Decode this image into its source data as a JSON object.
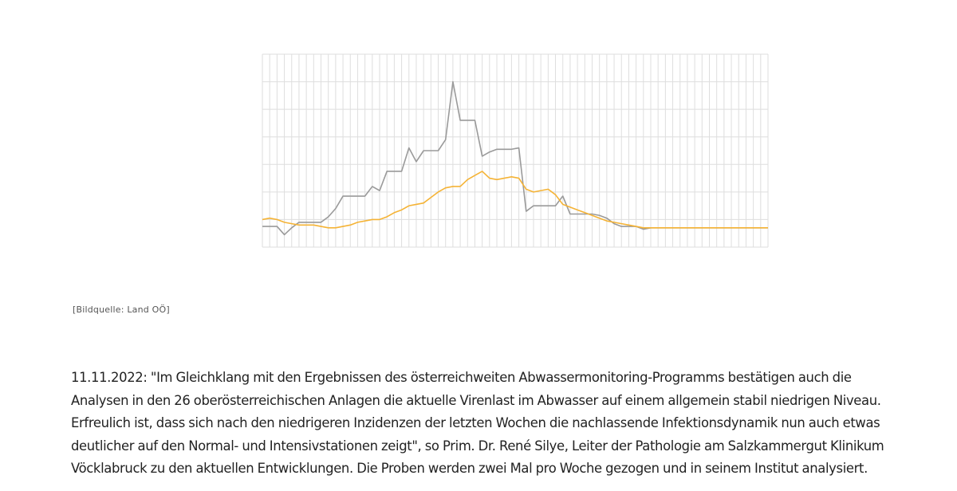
{
  "chart_data": {
    "type": "line",
    "x": [
      1,
      2,
      3,
      4,
      5,
      6,
      7,
      8,
      9,
      10,
      11,
      12,
      13,
      14,
      15,
      16,
      17,
      18,
      19,
      20,
      21,
      22,
      23,
      24,
      25,
      26,
      27,
      28,
      29,
      30,
      31,
      32,
      33,
      34,
      35,
      36,
      37,
      38,
      39,
      40,
      41,
      42,
      43,
      44,
      45,
      46,
      47,
      48,
      49,
      50,
      51,
      52,
      53,
      54,
      55,
      56,
      57,
      58,
      59,
      60,
      61,
      62,
      63,
      64,
      65,
      66,
      67,
      68,
      69,
      70
    ],
    "xlim": [
      1,
      70
    ],
    "ylim": [
      0,
      7
    ],
    "grid": true,
    "series": [
      {
        "color": "#9a9a9a",
        "values": [
          0.75,
          0.75,
          0.75,
          0.45,
          0.7,
          0.9,
          0.9,
          0.9,
          0.9,
          1.1,
          1.4,
          1.85,
          1.85,
          1.85,
          1.85,
          2.2,
          2.05,
          2.75,
          2.75,
          2.75,
          3.6,
          3.1,
          3.5,
          3.5,
          3.5,
          3.9,
          6.0,
          4.6,
          4.6,
          4.6,
          3.3,
          3.45,
          3.55,
          3.55,
          3.55,
          3.6,
          1.3,
          1.5,
          1.5,
          1.5,
          1.5,
          1.85,
          1.2,
          1.2,
          1.2,
          1.2,
          1.15,
          1.05,
          0.85,
          0.75,
          0.75,
          0.75,
          0.65,
          0.7,
          0.7,
          0.7,
          0.7,
          0.7,
          0.7,
          0.7,
          0.7,
          0.7,
          0.7,
          0.7,
          0.7,
          0.7,
          0.7,
          0.7,
          0.7,
          0.7
        ]
      },
      {
        "color": "#f5b335",
        "values": [
          1.0,
          1.05,
          1.0,
          0.9,
          0.85,
          0.8,
          0.8,
          0.8,
          0.75,
          0.7,
          0.7,
          0.75,
          0.8,
          0.9,
          0.95,
          1.0,
          1.0,
          1.1,
          1.25,
          1.35,
          1.5,
          1.55,
          1.6,
          1.8,
          2.0,
          2.15,
          2.2,
          2.2,
          2.45,
          2.6,
          2.75,
          2.5,
          2.45,
          2.5,
          2.55,
          2.5,
          2.1,
          2.0,
          2.05,
          2.1,
          1.9,
          1.55,
          1.45,
          1.35,
          1.25,
          1.15,
          1.05,
          0.95,
          0.9,
          0.85,
          0.8,
          0.75,
          0.7,
          0.7,
          0.7,
          0.7,
          0.7,
          0.7,
          0.7,
          0.7,
          0.7,
          0.7,
          0.7,
          0.7,
          0.7,
          0.7,
          0.7,
          0.7,
          0.7,
          0.7
        ]
      }
    ]
  },
  "caption": "[Bildquelle: Land OÖ]",
  "article": {
    "lines": [
      "11.11.2022: \"Im Gleichklang mit den Ergebnissen des österreichweiten Abwassermonitoring-Programms bestätigen auch die",
      "Analysen in den 26 oberösterreichischen Anlagen die aktuelle Virenlast im Abwasser auf einem allgemein stabil niedrigen Niveau.",
      "Erfreulich ist, dass sich nach den niedrigeren Inzidenzen der letzten Wochen die nachlassende Infektionsdynamik nun auch etwas",
      "deutlicher auf den Normal- und Intensivstationen zeigt\", so Prim. Dr. René Silye, Leiter der Pathologie am Salzkammergut Klinikum",
      "Vöcklabruck zu den aktuellen Entwicklungen. Die Proben werden zwei Mal pro Woche gezogen und in seinem Institut analysiert."
    ]
  }
}
